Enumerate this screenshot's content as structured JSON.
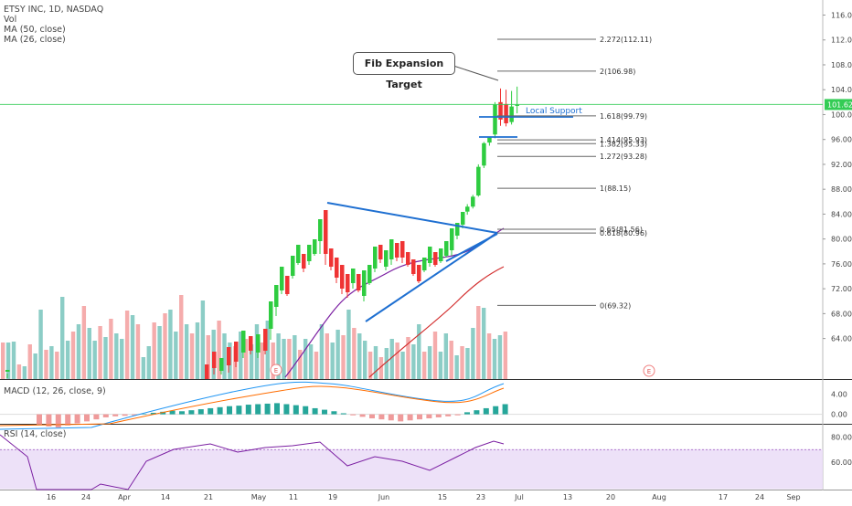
{
  "chart_data": [
    {
      "type": "candlestick",
      "title": "ETSY INC, 1D, NASDAQ",
      "legend": [
        "Vol",
        "MA (50, close)",
        "MA (26, close)"
      ],
      "x_tick_labels": [
        "16",
        "24",
        "Apr",
        "14",
        "21",
        "May",
        "11",
        "19",
        "Jun",
        "15",
        "23",
        "Jul",
        "13",
        "20",
        "Aug",
        "17",
        "24",
        "Sep"
      ],
      "y_ticks": [
        116.0,
        112.0,
        108.0,
        104.0,
        100.0,
        96.0,
        92.0,
        88.0,
        84.0,
        80.0,
        76.0,
        72.0,
        68.0,
        64.0
      ],
      "y_tick_labels": [
        "116.00",
        "112.00",
        "108.00",
        "104.00",
        "100.00",
        "96.00",
        "92.00",
        "88.00",
        "84.00",
        "80.00",
        "76.00",
        "72.00",
        "68.00",
        "64.00"
      ],
      "ylim": [
        61.5,
        118.5
      ],
      "last_price_label": "101.62",
      "last_price": 101.62,
      "ohlc_recent": [
        {
          "o": 84.4,
          "h": 85.6,
          "l": 83.9,
          "c": 85.2
        },
        {
          "o": 85.2,
          "h": 87.1,
          "l": 84.9,
          "c": 86.8
        },
        {
          "o": 87.0,
          "h": 92.0,
          "l": 86.8,
          "c": 91.6
        },
        {
          "o": 91.8,
          "h": 95.6,
          "l": 91.4,
          "c": 95.4
        },
        {
          "o": 95.5,
          "h": 96.4,
          "l": 95.0,
          "c": 96.3
        },
        {
          "o": 96.8,
          "h": 102.0,
          "l": 96.2,
          "c": 101.6
        },
        {
          "o": 102.0,
          "h": 104.2,
          "l": 98.2,
          "c": 99.2
        },
        {
          "o": 101.7,
          "h": 104.0,
          "l": 98.1,
          "c": 98.6
        },
        {
          "o": 98.8,
          "h": 103.8,
          "l": 98.4,
          "c": 101.3
        },
        {
          "o": 101.4,
          "h": 104.5,
          "l": 100.2,
          "c": 101.6
        }
      ],
      "fib_levels": [
        {
          "label": "2.272(112.11)",
          "value": 112.11
        },
        {
          "label": "2(106.98)",
          "value": 106.98
        },
        {
          "label": "1.618(99.79)",
          "value": 99.79
        },
        {
          "label": "1.414(95.93)",
          "value": 95.93
        },
        {
          "label": "1.382(95.33)",
          "value": 95.33
        },
        {
          "label": "1.272(93.28)",
          "value": 93.28
        },
        {
          "label": "1(88.15)",
          "value": 88.15
        },
        {
          "label": "0.65(81.56)",
          "value": 81.56
        },
        {
          "label": "0.618(80.96)",
          "value": 80.96
        },
        {
          "label": "0(69.32)",
          "value": 69.32
        }
      ],
      "annotations": {
        "callout": "Fib Expansion Target",
        "local_support": "Local Support",
        "earnings_marker": "E"
      },
      "colors": {
        "up": "#26a69a",
        "up_bright": "#2ecc40",
        "down": "#ef3434",
        "ma50": "#d32f2f",
        "ma26": "#7b1fa2",
        "trendline": "#1e6fd1",
        "price_line": "#33cc55"
      }
    },
    {
      "type": "histogram",
      "title": "MACD (12, 26, close, 9)",
      "y_tick_labels": [
        "4.00",
        "0.00"
      ],
      "y_ticks": [
        4.0,
        0.0
      ],
      "ylim": [
        -2.0,
        6.0
      ]
    },
    {
      "type": "line",
      "title": "RSI (14, close)",
      "y_tick_labels": [
        "80.00",
        "60.00"
      ],
      "y_ticks": [
        80.0,
        60.0
      ],
      "ylim": [
        33.0,
        90.0
      ],
      "band": [
        30,
        70
      ]
    }
  ]
}
